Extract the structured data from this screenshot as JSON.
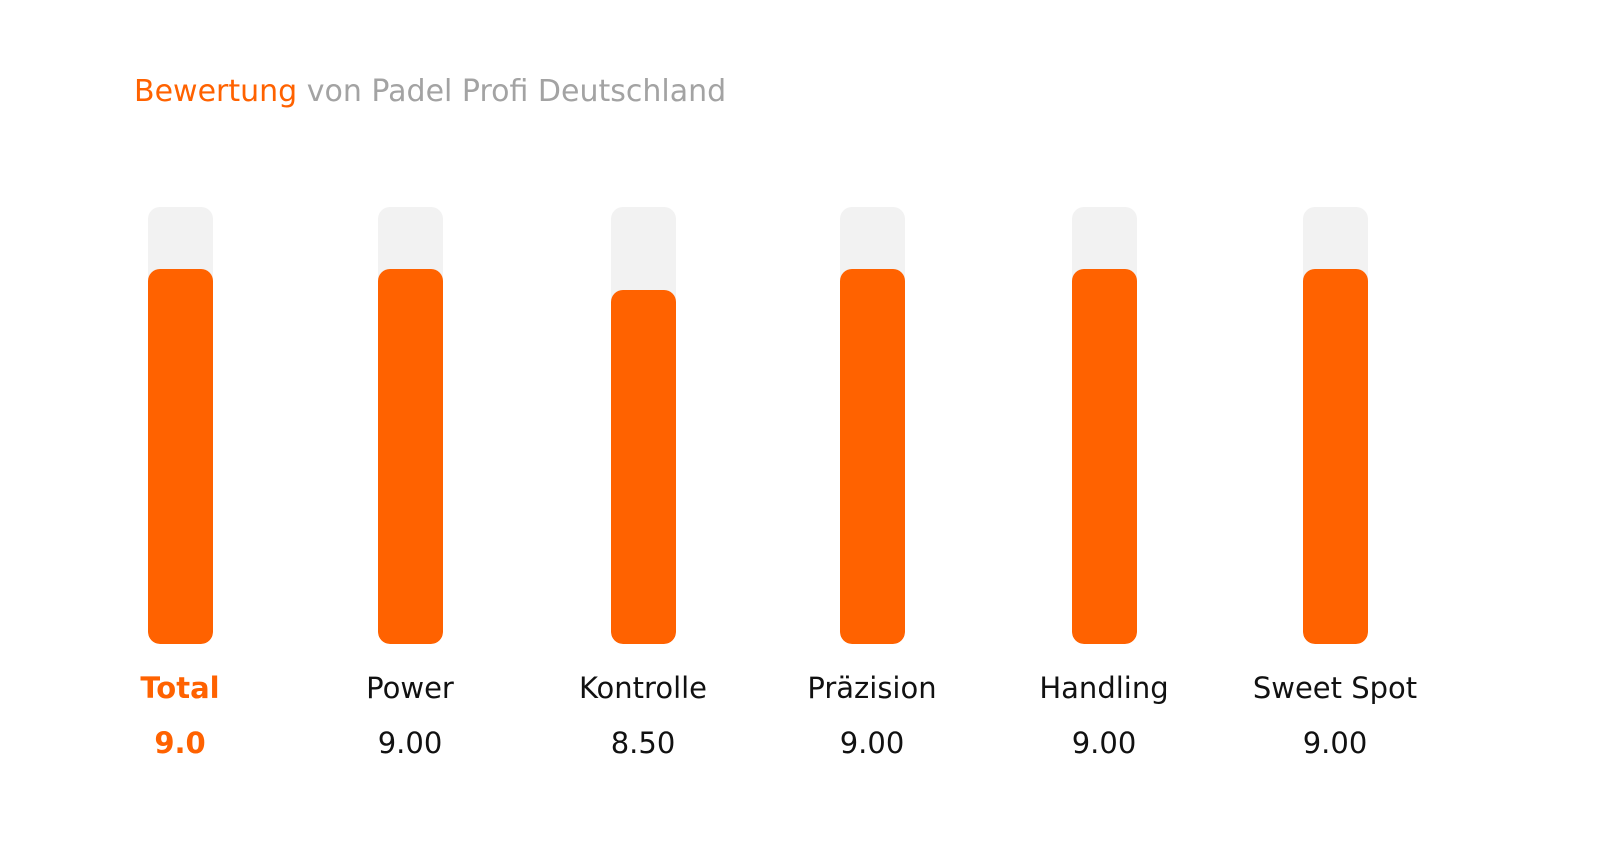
{
  "header": {
    "title_accent": "Bewertung",
    "title_rest": "von Padel Profi Deutschland"
  },
  "colors": {
    "accent": "#ff6200",
    "track": "#f2f2f2",
    "title_gray": "#a3a3a3",
    "text": "#111111"
  },
  "chart_data": {
    "type": "bar",
    "title": "Bewertung von Padel Profi Deutschland",
    "categories": [
      "Total",
      "Power",
      "Kontrolle",
      "Präzision",
      "Handling",
      "Sweet Spot"
    ],
    "values": [
      9.0,
      9.0,
      8.5,
      9.0,
      9.0,
      9.0
    ],
    "value_labels": [
      "9.0",
      "9.00",
      "8.50",
      "9.00",
      "9.00",
      "9.00"
    ],
    "ylim": [
      0,
      10.5
    ],
    "grid": false,
    "legend": "none"
  }
}
